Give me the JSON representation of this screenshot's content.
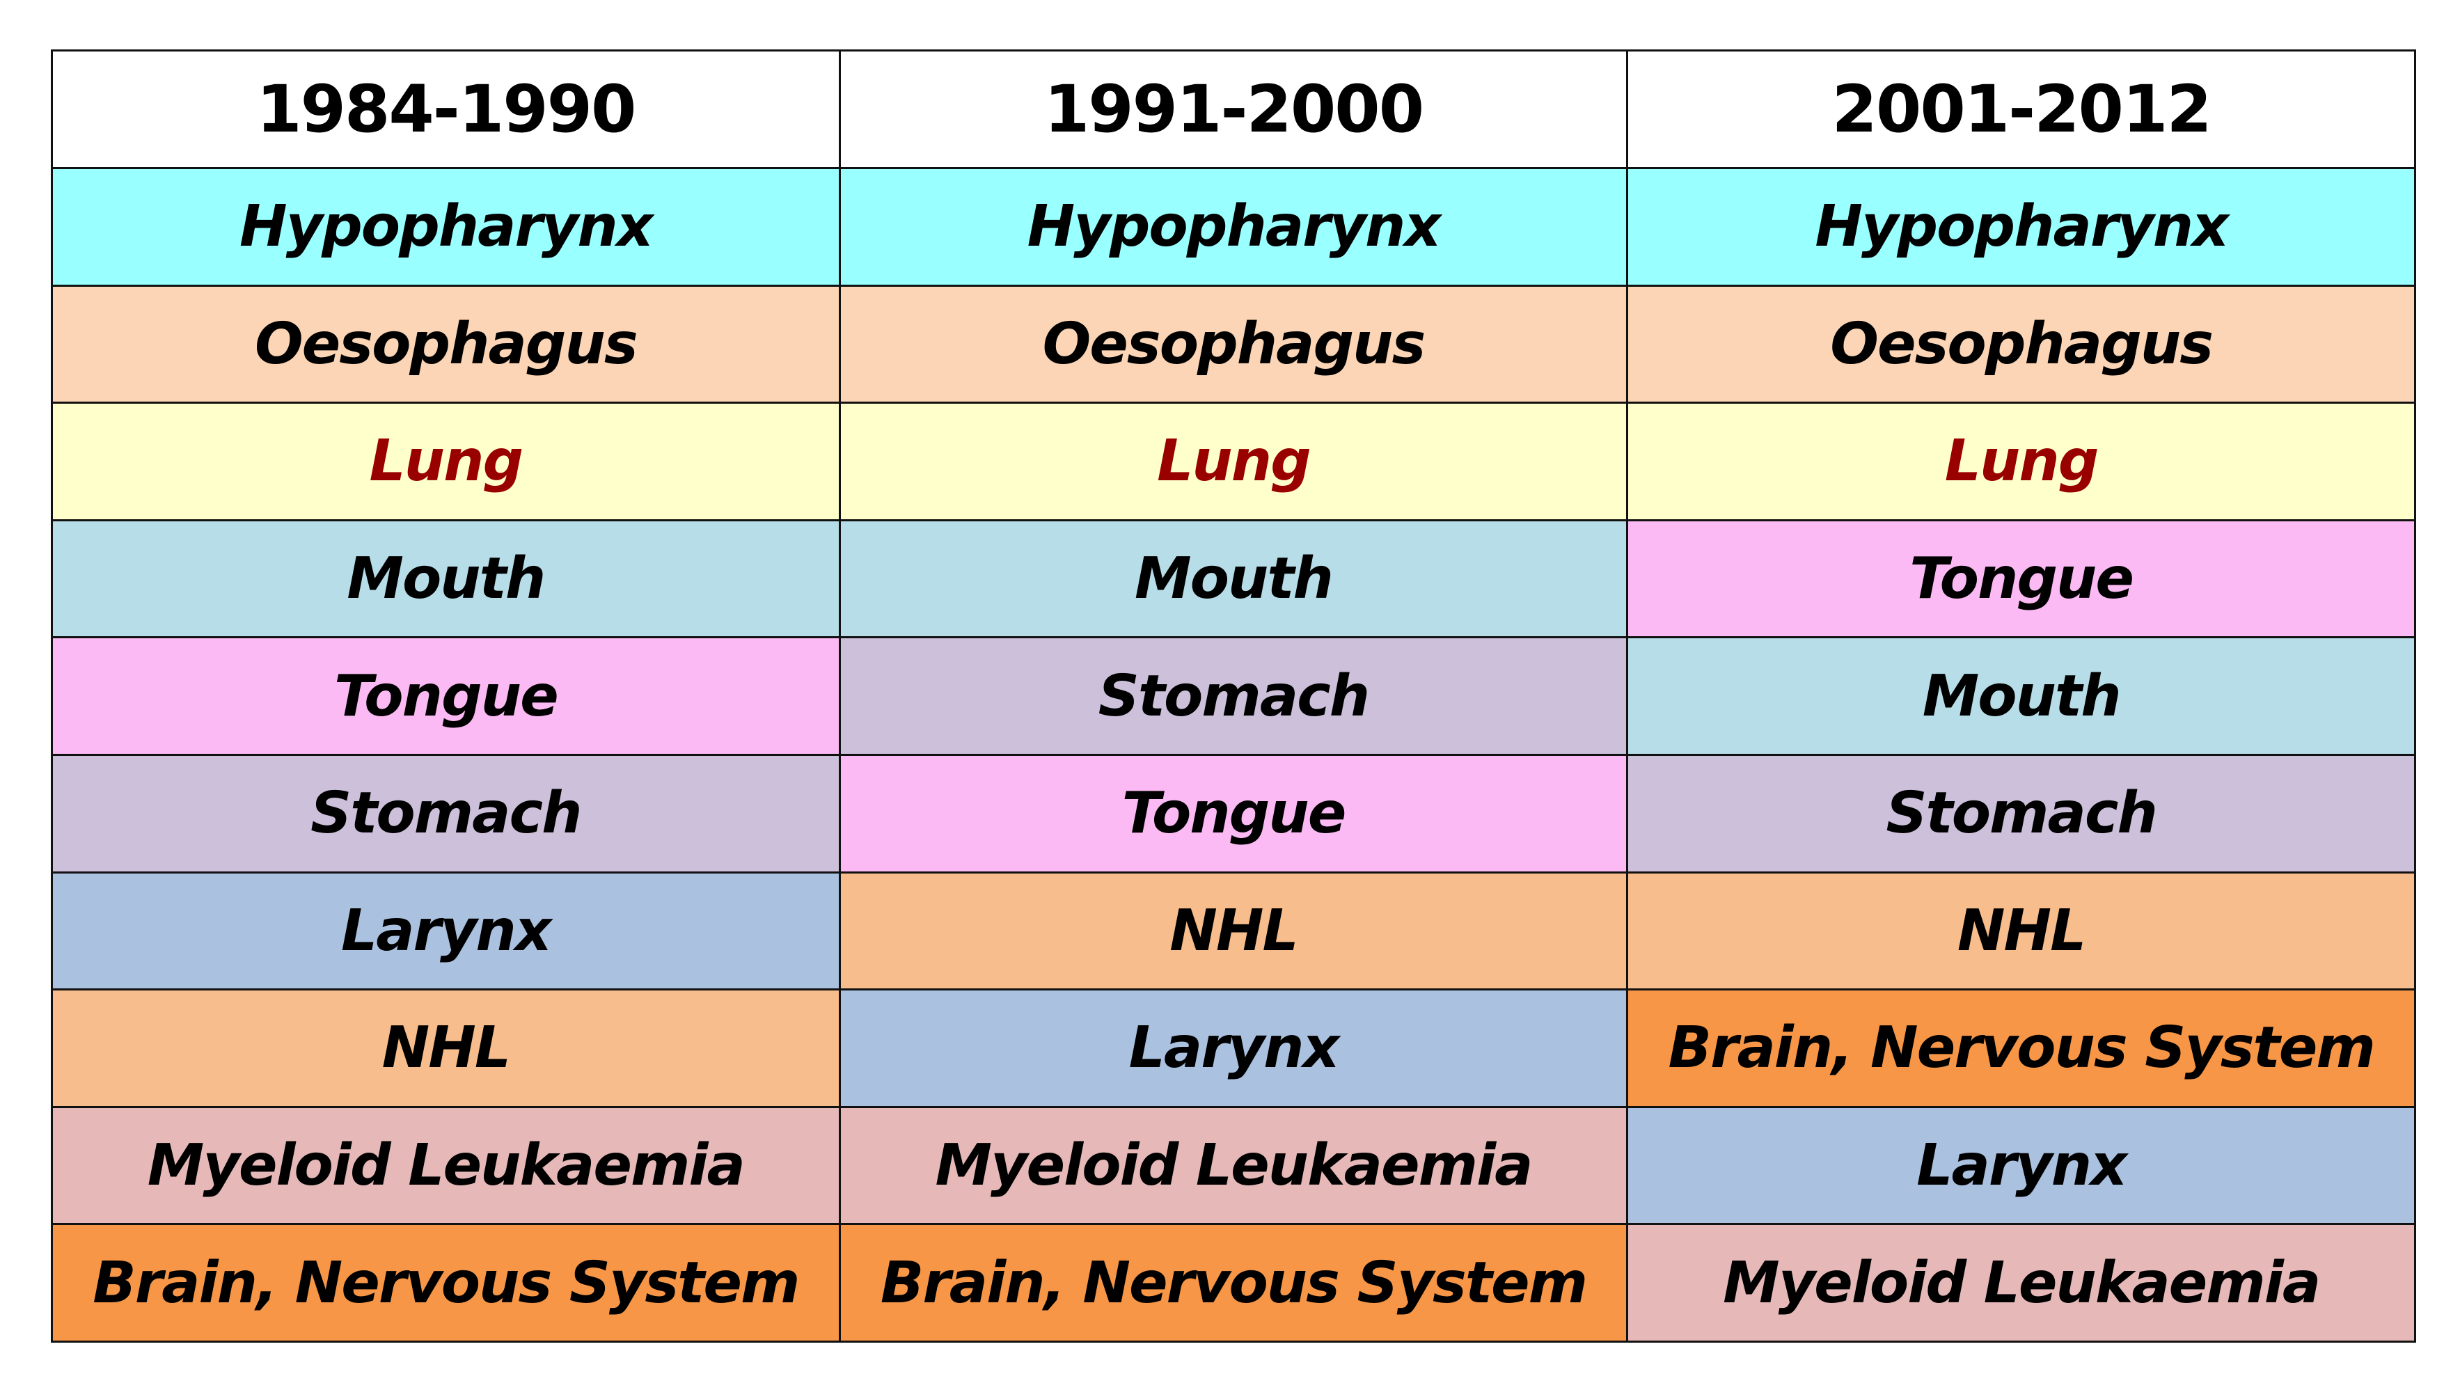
{
  "colors": {
    "Hypopharynx": "#99ffff",
    "Oesophagus": "#fbd5b5",
    "Lung": "#ffffcc",
    "Mouth": "#b6dde8",
    "Tongue": "#fbbaf3",
    "Stomach": "#ccc0da",
    "Larynx": "#aac1df",
    "NHL": "#f8bd8c",
    "Myeloid Leukaemia": "#e6b9b8",
    "Brain, Nervous System": "#f79646"
  },
  "text_colors": {
    "Lung": "#990000"
  },
  "chart_data": {
    "type": "table",
    "columns": [
      "1984-1990",
      "1991-2000",
      "2001-2012"
    ],
    "rows": [
      [
        "Hypopharynx",
        "Hypopharynx",
        "Hypopharynx"
      ],
      [
        "Oesophagus",
        "Oesophagus",
        "Oesophagus"
      ],
      [
        "Lung",
        "Lung",
        "Lung"
      ],
      [
        "Mouth",
        "Mouth",
        "Tongue"
      ],
      [
        "Tongue",
        "Stomach",
        "Mouth"
      ],
      [
        "Stomach",
        "Tongue",
        "Stomach"
      ],
      [
        "Larynx",
        "NHL",
        "NHL"
      ],
      [
        "NHL",
        "Larynx",
        "Brain, Nervous System"
      ],
      [
        "Myeloid Leukaemia",
        "Myeloid Leukaemia",
        "Larynx"
      ],
      [
        "Brain, Nervous System",
        "Brain, Nervous System",
        "Myeloid Leukaemia"
      ]
    ]
  }
}
